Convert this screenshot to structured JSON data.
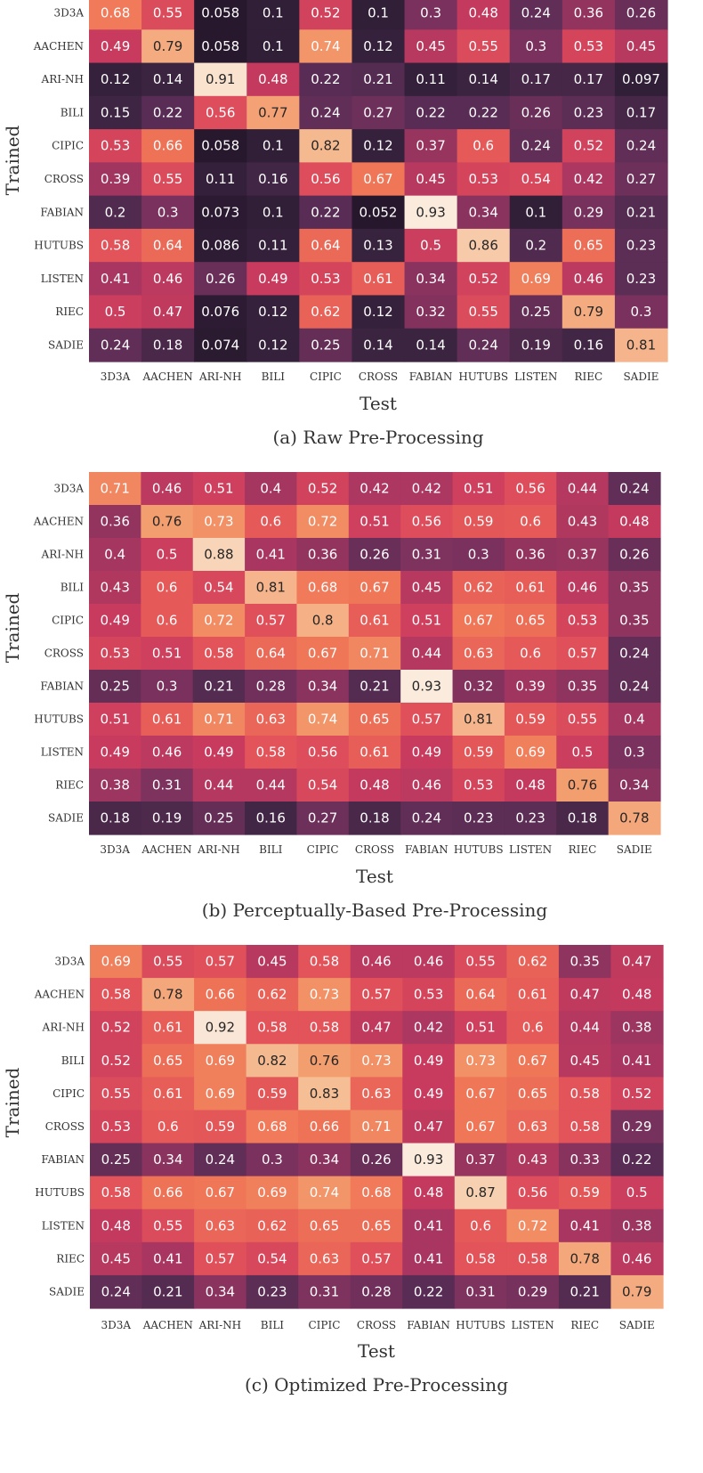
{
  "chart_data": [
    {
      "type": "heatmap",
      "caption": "(a) Raw Pre-Processing",
      "xlabel": "Test",
      "ylabel": "Trained",
      "x_labels": [
        "3D3A",
        "AACHEN",
        "ARI-NH",
        "BILI",
        "CIPIC",
        "CROSS",
        "FABIAN",
        "HUTUBS",
        "LISTEN",
        "RIEC",
        "SADIE"
      ],
      "y_labels": [
        "3D3A",
        "AACHEN",
        "ARI-NH",
        "BILI",
        "CIPIC",
        "CROSS",
        "FABIAN",
        "HUTUBS",
        "LISTEN",
        "RIEC",
        "SADIE"
      ],
      "values": [
        [
          0.68,
          0.55,
          0.058,
          0.1,
          0.52,
          0.1,
          0.3,
          0.48,
          0.24,
          0.36,
          0.26
        ],
        [
          0.49,
          0.79,
          0.058,
          0.1,
          0.74,
          0.12,
          0.45,
          0.55,
          0.3,
          0.53,
          0.45
        ],
        [
          0.12,
          0.14,
          0.91,
          0.48,
          0.22,
          0.21,
          0.11,
          0.14,
          0.17,
          0.17,
          0.097
        ],
        [
          0.15,
          0.22,
          0.56,
          0.77,
          0.24,
          0.27,
          0.22,
          0.22,
          0.26,
          0.23,
          0.17
        ],
        [
          0.53,
          0.66,
          0.058,
          0.1,
          0.82,
          0.12,
          0.37,
          0.6,
          0.24,
          0.52,
          0.24
        ],
        [
          0.39,
          0.55,
          0.11,
          0.16,
          0.56,
          0.67,
          0.45,
          0.53,
          0.54,
          0.42,
          0.27
        ],
        [
          0.2,
          0.3,
          0.073,
          0.1,
          0.22,
          0.052,
          0.93,
          0.34,
          0.1,
          0.29,
          0.21
        ],
        [
          0.58,
          0.64,
          0.086,
          0.11,
          0.64,
          0.13,
          0.5,
          0.86,
          0.2,
          0.65,
          0.23
        ],
        [
          0.41,
          0.46,
          0.26,
          0.49,
          0.53,
          0.61,
          0.34,
          0.52,
          0.69,
          0.46,
          0.23
        ],
        [
          0.5,
          0.47,
          0.076,
          0.12,
          0.62,
          0.12,
          0.32,
          0.55,
          0.25,
          0.79,
          0.3
        ],
        [
          0.24,
          0.18,
          0.074,
          0.12,
          0.25,
          0.14,
          0.14,
          0.24,
          0.19,
          0.16,
          0.81
        ]
      ]
    },
    {
      "type": "heatmap",
      "caption": "(b) Perceptually-Based Pre-Processing",
      "xlabel": "Test",
      "ylabel": "Trained",
      "x_labels": [
        "3D3A",
        "AACHEN",
        "ARI-NH",
        "BILI",
        "CIPIC",
        "CROSS",
        "FABIAN",
        "HUTUBS",
        "LISTEN",
        "RIEC",
        "SADIE"
      ],
      "y_labels": [
        "3D3A",
        "AACHEN",
        "ARI-NH",
        "BILI",
        "CIPIC",
        "CROSS",
        "FABIAN",
        "HUTUBS",
        "LISTEN",
        "RIEC",
        "SADIE"
      ],
      "values": [
        [
          0.71,
          0.46,
          0.51,
          0.4,
          0.52,
          0.42,
          0.42,
          0.51,
          0.56,
          0.44,
          0.24
        ],
        [
          0.36,
          0.76,
          0.73,
          0.6,
          0.72,
          0.51,
          0.56,
          0.59,
          0.6,
          0.43,
          0.48
        ],
        [
          0.4,
          0.5,
          0.88,
          0.41,
          0.36,
          0.26,
          0.31,
          0.3,
          0.36,
          0.37,
          0.26
        ],
        [
          0.43,
          0.6,
          0.54,
          0.81,
          0.68,
          0.67,
          0.45,
          0.62,
          0.61,
          0.46,
          0.35
        ],
        [
          0.49,
          0.6,
          0.72,
          0.57,
          0.8,
          0.61,
          0.51,
          0.67,
          0.65,
          0.53,
          0.35
        ],
        [
          0.53,
          0.51,
          0.58,
          0.64,
          0.67,
          0.71,
          0.44,
          0.63,
          0.6,
          0.57,
          0.24
        ],
        [
          0.25,
          0.3,
          0.21,
          0.28,
          0.34,
          0.21,
          0.93,
          0.32,
          0.39,
          0.35,
          0.24
        ],
        [
          0.51,
          0.61,
          0.71,
          0.63,
          0.74,
          0.65,
          0.57,
          0.81,
          0.59,
          0.55,
          0.4
        ],
        [
          0.49,
          0.46,
          0.49,
          0.58,
          0.56,
          0.61,
          0.49,
          0.59,
          0.69,
          0.5,
          0.3
        ],
        [
          0.38,
          0.31,
          0.44,
          0.44,
          0.54,
          0.48,
          0.46,
          0.53,
          0.48,
          0.76,
          0.34
        ],
        [
          0.18,
          0.19,
          0.25,
          0.16,
          0.27,
          0.18,
          0.24,
          0.23,
          0.23,
          0.18,
          0.78
        ]
      ]
    },
    {
      "type": "heatmap",
      "caption": "(c) Optimized Pre-Processing",
      "xlabel": "Test",
      "ylabel": "Trained",
      "x_labels": [
        "3D3A",
        "AACHEN",
        "ARI-NH",
        "BILI",
        "CIPIC",
        "CROSS",
        "FABIAN",
        "HUTUBS",
        "LISTEN",
        "RIEC",
        "SADIE"
      ],
      "y_labels": [
        "3D3A",
        "AACHEN",
        "ARI-NH",
        "BILI",
        "CIPIC",
        "CROSS",
        "FABIAN",
        "HUTUBS",
        "LISTEN",
        "RIEC",
        "SADIE"
      ],
      "values": [
        [
          0.69,
          0.55,
          0.57,
          0.45,
          0.58,
          0.46,
          0.46,
          0.55,
          0.62,
          0.35,
          0.47
        ],
        [
          0.58,
          0.78,
          0.66,
          0.62,
          0.73,
          0.57,
          0.53,
          0.64,
          0.61,
          0.47,
          0.48
        ],
        [
          0.52,
          0.61,
          0.92,
          0.58,
          0.58,
          0.47,
          0.42,
          0.51,
          0.6,
          0.44,
          0.38
        ],
        [
          0.52,
          0.65,
          0.69,
          0.82,
          0.76,
          0.73,
          0.49,
          0.73,
          0.67,
          0.45,
          0.41
        ],
        [
          0.55,
          0.61,
          0.69,
          0.59,
          0.83,
          0.63,
          0.49,
          0.67,
          0.65,
          0.58,
          0.52
        ],
        [
          0.53,
          0.6,
          0.59,
          0.68,
          0.66,
          0.71,
          0.47,
          0.67,
          0.63,
          0.58,
          0.29
        ],
        [
          0.25,
          0.34,
          0.24,
          0.3,
          0.34,
          0.26,
          0.93,
          0.37,
          0.43,
          0.33,
          0.22
        ],
        [
          0.58,
          0.66,
          0.67,
          0.69,
          0.74,
          0.68,
          0.48,
          0.87,
          0.56,
          0.59,
          0.5
        ],
        [
          0.48,
          0.55,
          0.63,
          0.62,
          0.65,
          0.65,
          0.41,
          0.6,
          0.72,
          0.41,
          0.38
        ],
        [
          0.45,
          0.41,
          0.57,
          0.54,
          0.63,
          0.57,
          0.41,
          0.58,
          0.58,
          0.78,
          0.46
        ],
        [
          0.24,
          0.21,
          0.34,
          0.23,
          0.31,
          0.28,
          0.22,
          0.31,
          0.29,
          0.21,
          0.79
        ]
      ]
    }
  ],
  "colormap": {
    "name": "rocket",
    "range": [
      0.05,
      0.93
    ],
    "stops": [
      "#26172c",
      "#3a2440",
      "#5a2d55",
      "#80325e",
      "#a53660",
      "#c83b5e",
      "#e2525a",
      "#ef7456",
      "#f39b6c",
      "#f6c39c",
      "#faebdd"
    ],
    "text_dark": "#262626",
    "text_light": "#ffffff"
  }
}
